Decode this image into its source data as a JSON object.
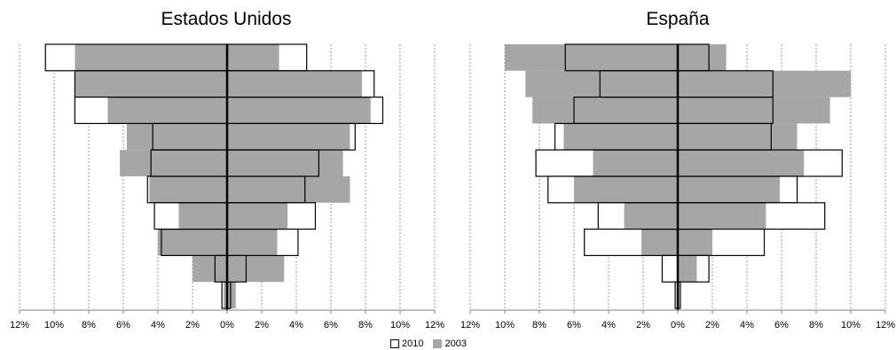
{
  "chart_data": [
    {
      "type": "bar",
      "title": "Estados Unidos",
      "x_ticks": [
        "12%",
        "10%",
        "8%",
        "6%",
        "4%",
        "2%",
        "0%",
        "2%",
        "4%",
        "6%",
        "8%",
        "10%",
        "12%"
      ],
      "xlim": [
        -12,
        12
      ],
      "grid": true,
      "series": [
        {
          "name": "2010",
          "left": [
            10.5,
            8.8,
            8.8,
            4.3,
            4.4,
            4.6,
            4.2,
            3.8,
            0.7,
            0.3
          ],
          "right": [
            4.6,
            8.5,
            9.0,
            7.4,
            5.3,
            4.5,
            5.1,
            4.1,
            1.1,
            0.2
          ]
        },
        {
          "name": "2003",
          "left": [
            8.8,
            8.8,
            6.9,
            5.8,
            6.2,
            4.5,
            2.8,
            4.0,
            2.0,
            0.2
          ],
          "right": [
            3.0,
            7.8,
            8.3,
            7.1,
            6.7,
            7.1,
            3.5,
            2.9,
            3.3,
            0.5
          ]
        }
      ]
    },
    {
      "type": "bar",
      "title": "España",
      "x_ticks": [
        "12%",
        "10%",
        "8%",
        "6%",
        "4%",
        "2%",
        "0%",
        "2%",
        "4%",
        "6%",
        "8%",
        "10%",
        "12%"
      ],
      "xlim": [
        -12,
        12
      ],
      "grid": true,
      "series": [
        {
          "name": "2010",
          "left": [
            6.5,
            4.5,
            6.0,
            7.1,
            8.2,
            7.5,
            4.6,
            5.4,
            0.9,
            0.15
          ],
          "right": [
            1.8,
            5.5,
            5.5,
            5.4,
            9.5,
            6.9,
            8.5,
            5.0,
            1.8,
            0.15
          ]
        },
        {
          "name": "2003",
          "left": [
            10.0,
            8.8,
            8.4,
            6.6,
            4.9,
            6.0,
            3.1,
            2.1,
            0.0,
            0.0
          ],
          "right": [
            2.8,
            10.0,
            8.8,
            6.9,
            7.3,
            5.9,
            5.1,
            2.0,
            1.1,
            0.1
          ]
        }
      ]
    }
  ],
  "legend": {
    "label_2010": "2010",
    "label_2003": "2003"
  },
  "colors": {
    "series_2010_fill": "#ffffff",
    "series_2003_fill": "#a6a6a6",
    "stroke": "#000000",
    "grid": "#808080"
  }
}
